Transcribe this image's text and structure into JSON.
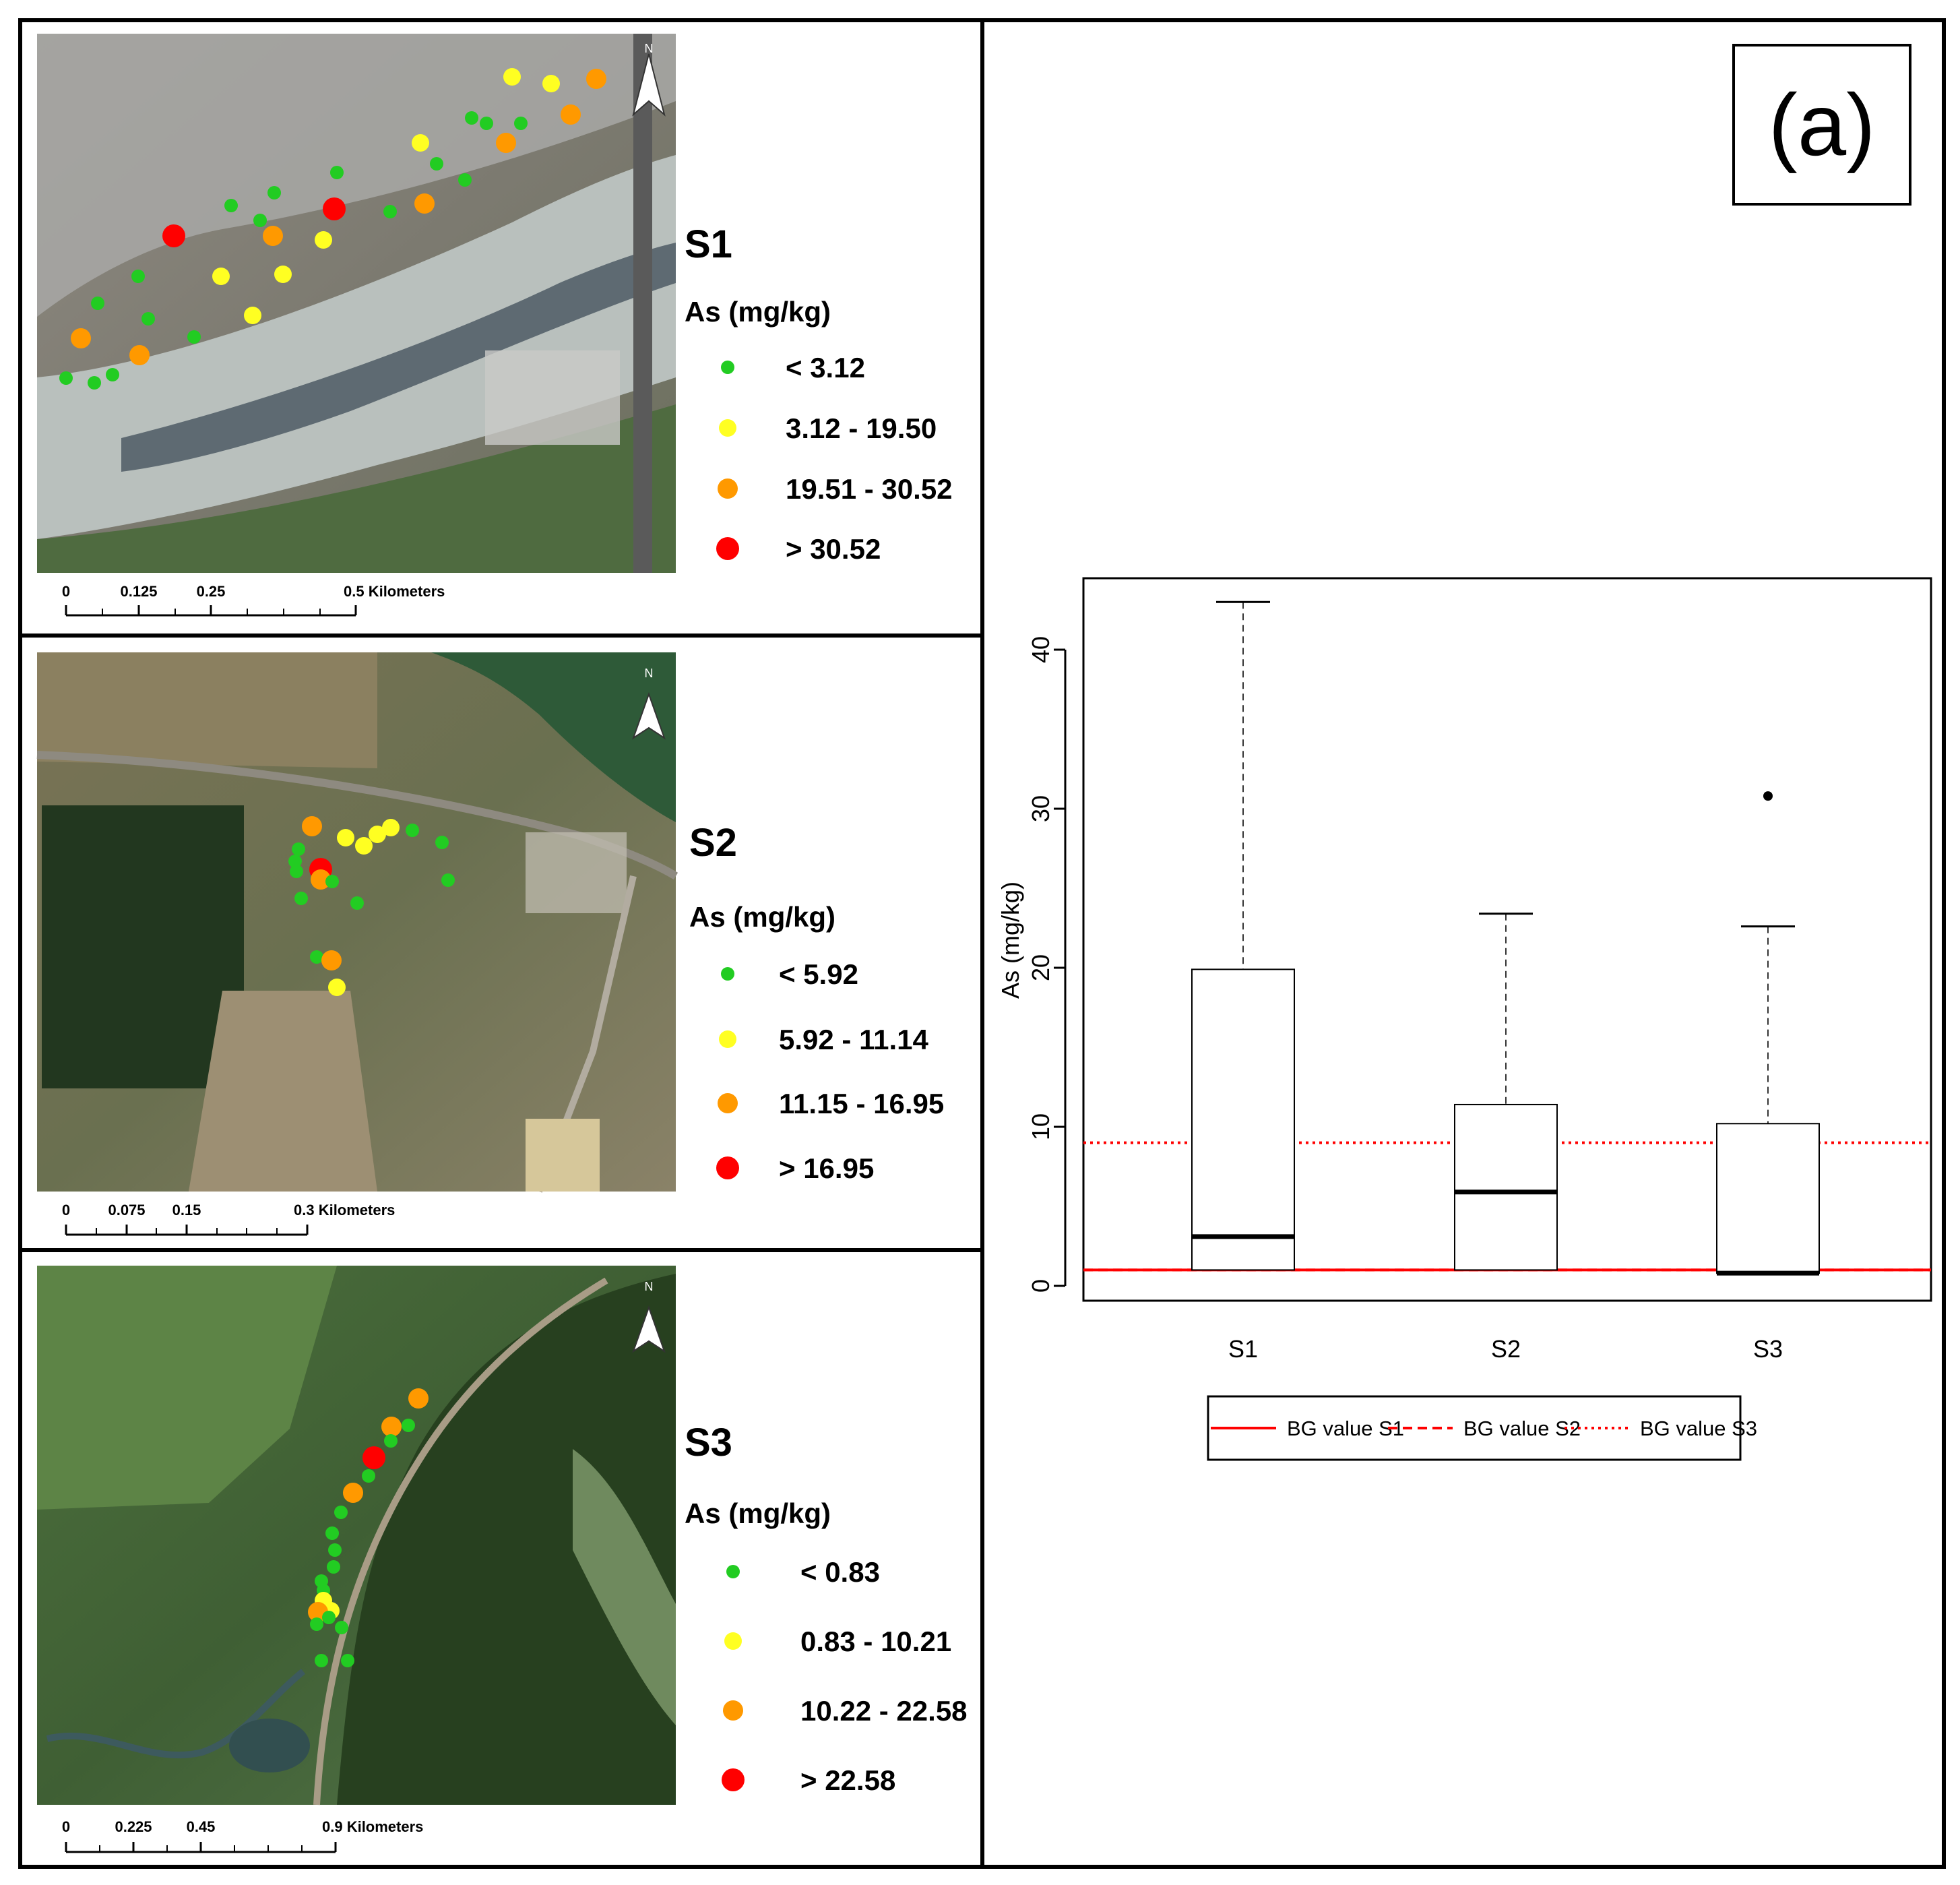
{
  "panels": [
    {
      "site": "S1",
      "unit": "As (mg/kg)",
      "classes": [
        "< 3.12",
        "3.12 - 19.50",
        "19.51 - 30.52",
        "> 30.52"
      ],
      "scale_labels": [
        "0",
        "0.125",
        "0.25",
        "0.5 Kilometers"
      ],
      "north": "N"
    },
    {
      "site": "S2",
      "unit": "As (mg/kg)",
      "classes": [
        "< 5.92",
        "5.92 - 11.14",
        "11.15 - 16.95",
        "> 16.95"
      ],
      "scale_labels": [
        "0",
        "0.075",
        "0.15",
        "0.3 Kilometers"
      ],
      "north": "N"
    },
    {
      "site": "S3",
      "unit": "As (mg/kg)",
      "classes": [
        "< 0.83",
        "0.83 - 10.21",
        "10.22 - 22.58",
        "> 22.58"
      ],
      "scale_labels": [
        "0",
        "0.225",
        "0.45",
        "0.9 Kilometers"
      ],
      "north": "N"
    }
  ],
  "class_colors": [
    "#22cc22",
    "#ffff22",
    "#ff9900",
    "#ff0000"
  ],
  "panel_tag": "(a)",
  "chart_data": {
    "type": "boxplot",
    "ylabel": "As (mg/kg)",
    "ylim": [
      -1,
      45
    ],
    "yticks": [
      0,
      10,
      20,
      30,
      40
    ],
    "categories": [
      "S1",
      "S2",
      "S3"
    ],
    "boxes": [
      {
        "min": 1.0,
        "q1": 1.0,
        "median": 3.1,
        "q3": 19.9,
        "max": 43.0,
        "outliers": []
      },
      {
        "min": 1.0,
        "q1": 1.0,
        "median": 5.9,
        "q3": 11.4,
        "max": 23.4,
        "outliers": []
      },
      {
        "min": 0.8,
        "q1": 0.8,
        "median": 0.8,
        "q3": 10.2,
        "max": 22.6,
        "outliers": [
          30.8
        ]
      }
    ],
    "reference_lines": [
      {
        "name": "BG value S1",
        "value": 1.0,
        "style": "solid",
        "color": "#ff0000"
      },
      {
        "name": "BG value S2",
        "value": 1.0,
        "style": "dashed",
        "color": "#ff0000"
      },
      {
        "name": "BG value S3",
        "value": 9.0,
        "style": "dotted",
        "color": "#ff0000"
      }
    ],
    "legend_position": "bottom"
  }
}
